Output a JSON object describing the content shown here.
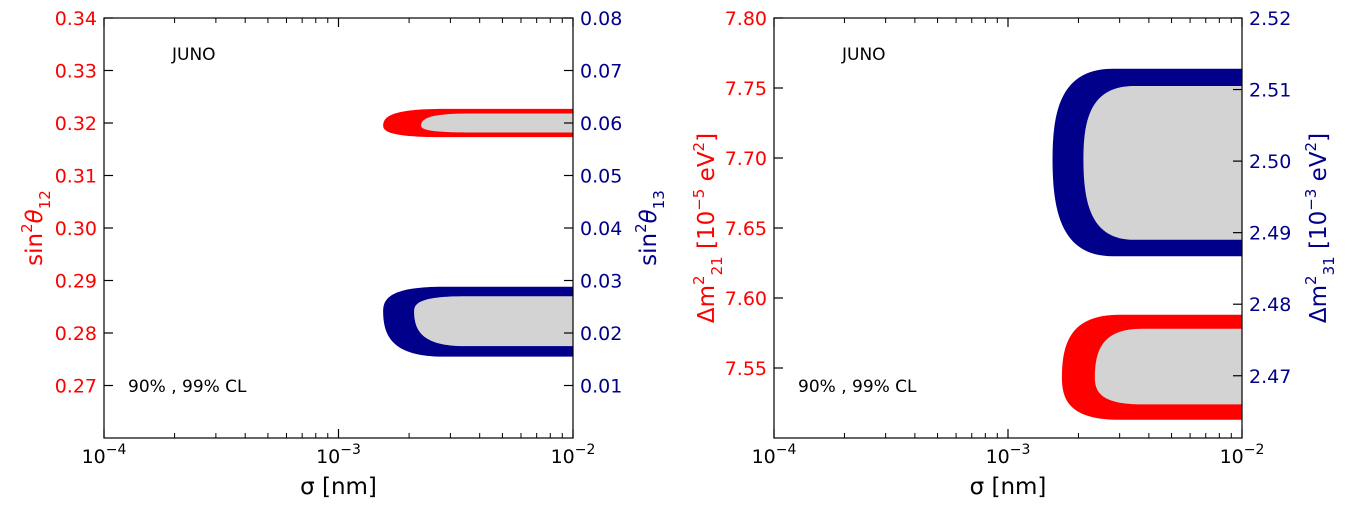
{
  "colors": {
    "red": "#ff0000",
    "blue": "#00008b",
    "fill": "#d3d3d3"
  },
  "chart_data": [
    {
      "type": "contour",
      "annotations": {
        "experiment": "JUNO",
        "cl": "90% , 99% CL"
      },
      "xlabel": "σ [nm]",
      "xscale": "log",
      "xlim": [
        0.0001,
        0.01
      ],
      "xticks": [
        {
          "value": 0.0001,
          "base": "10",
          "exp": "−4"
        },
        {
          "value": 0.001,
          "base": "10",
          "exp": "−3"
        },
        {
          "value": 0.01,
          "base": "10",
          "exp": "−2"
        }
      ],
      "y_left": {
        "label_main": "sin",
        "label_sup": "2",
        "label_theta": "θ",
        "label_sub": "12",
        "color": "red",
        "lim": [
          0.26,
          0.34
        ],
        "ticks": [
          "0.27",
          "0.28",
          "0.29",
          "0.30",
          "0.31",
          "0.32",
          "0.33",
          "0.34"
        ]
      },
      "y_right": {
        "label_main": "sin",
        "label_sup": "2",
        "label_theta": "θ",
        "label_sub": "13",
        "color": "blue",
        "lim": [
          0.0,
          0.08
        ],
        "ticks": [
          "0.01",
          "0.02",
          "0.03",
          "0.04",
          "0.05",
          "0.06",
          "0.07",
          "0.08"
        ]
      },
      "regions": [
        {
          "axis": "left",
          "color": "red",
          "cl": "99%",
          "x_min": 0.00155,
          "y_center": 0.3195,
          "y_lower": 0.3173,
          "y_upper": 0.3227
        },
        {
          "axis": "left",
          "color": "fill",
          "cl": "90%",
          "x_min": 0.00225,
          "y_center": 0.3195,
          "y_lower": 0.3182,
          "y_upper": 0.3218
        },
        {
          "axis": "right",
          "color": "blue",
          "cl": "99%",
          "x_min": 0.00155,
          "y_center": 0.0242,
          "y_lower": 0.0155,
          "y_upper": 0.0288
        },
        {
          "axis": "right",
          "color": "fill",
          "cl": "90%",
          "x_min": 0.0021,
          "y_center": 0.0242,
          "y_lower": 0.0175,
          "y_upper": 0.027
        }
      ]
    },
    {
      "type": "contour",
      "annotations": {
        "experiment": "JUNO",
        "cl": "90% , 99% CL"
      },
      "xlabel": "σ [nm]",
      "xscale": "log",
      "xlim": [
        0.0001,
        0.01
      ],
      "xticks": [
        {
          "value": 0.0001,
          "base": "10",
          "exp": "−4"
        },
        {
          "value": 0.001,
          "base": "10",
          "exp": "−3"
        },
        {
          "value": 0.01,
          "base": "10",
          "exp": "−2"
        }
      ],
      "y_left": {
        "label_main": "Δm",
        "label_sup": "2",
        "label_sub": "21",
        "label_unit": " [10",
        "label_unit_sup": "−5",
        "label_unit_tail": " eV",
        "label_unit_sup2": "2",
        "label_close": "]",
        "color": "red",
        "lim": [
          7.5,
          7.8
        ],
        "ticks": [
          "7.55",
          "7.60",
          "7.65",
          "7.70",
          "7.75",
          "7.80"
        ]
      },
      "y_right": {
        "label_main": "Δm",
        "label_sup": "2",
        "label_sub": "31",
        "label_unit": " [10",
        "label_unit_sup": "−3",
        "label_unit_tail": " eV",
        "label_unit_sup2": "2",
        "label_close": "]",
        "color": "blue",
        "lim": [
          2.4613,
          2.52
        ],
        "ticks": [
          "2.47",
          "2.48",
          "2.49",
          "2.50",
          "2.51",
          "2.52"
        ]
      },
      "regions": [
        {
          "axis": "right",
          "color": "blue",
          "cl": "99%",
          "x_min": 0.00155,
          "y_center": 2.5003,
          "y_lower": 2.4867,
          "y_upper": 2.5129
        },
        {
          "axis": "right",
          "color": "fill",
          "cl": "90%",
          "x_min": 0.0021,
          "y_center": 2.5003,
          "y_lower": 2.489,
          "y_upper": 2.5105
        },
        {
          "axis": "left",
          "color": "red",
          "cl": "99%",
          "x_min": 0.0017,
          "y_center": 7.543,
          "y_lower": 7.513,
          "y_upper": 7.588
        },
        {
          "axis": "left",
          "color": "fill",
          "cl": "90%",
          "x_min": 0.00235,
          "y_center": 7.543,
          "y_lower": 7.524,
          "y_upper": 7.578
        }
      ]
    }
  ]
}
